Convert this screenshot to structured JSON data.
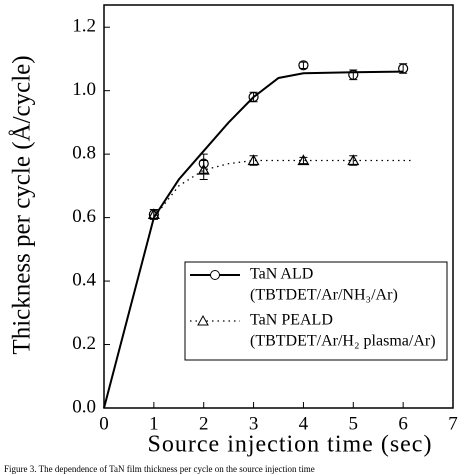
{
  "chart_data": {
    "type": "scatter",
    "xlabel": "Source injection time (sec)",
    "ylabel": "Thickness per cycle (Å/cycle)",
    "xlim": [
      0,
      7
    ],
    "xticks": [
      0,
      1,
      2,
      3,
      4,
      5,
      6,
      7
    ],
    "ylim": [
      0,
      1.27
    ],
    "yticks": [
      {
        "value": 0,
        "label": "0.0"
      },
      0.2,
      0.4,
      0.6,
      0.8,
      {
        "value": 1,
        "label": "1.0"
      },
      1.2
    ],
    "series": [
      {
        "name": "TaN ALD",
        "detail": "(TBTDET/Ar/NH₃/Ar)",
        "marker": "circle",
        "line": "solid",
        "color": "#000000",
        "x": [
          1,
          2,
          3,
          4,
          5,
          6
        ],
        "values": [
          0.61,
          0.77,
          0.98,
          1.08,
          1.05,
          1.07
        ],
        "errors": [
          0.015,
          0.03,
          0.015,
          0.01,
          0.015,
          0.015
        ],
        "fit": {
          "x": [
            0,
            0.5,
            1,
            1.5,
            2,
            2.5,
            3,
            3.5,
            4,
            5,
            6
          ],
          "values": [
            0,
            0.3,
            0.6,
            0.72,
            0.81,
            0.9,
            0.98,
            1.04,
            1.055,
            1.058,
            1.06
          ]
        }
      },
      {
        "name": "TaN PEALD",
        "detail": "(TBTDET/Ar/H₂ plasma/Ar)",
        "marker": "triangle",
        "line": "dotted",
        "color": "#000000",
        "x": [
          1,
          2,
          3,
          4,
          5
        ],
        "values": [
          0.61,
          0.75,
          0.78,
          0.78,
          0.78
        ],
        "errors": [
          0.015,
          0.03,
          0.015,
          0.01,
          0.015
        ],
        "fit": {
          "x": [
            0,
            0.5,
            1,
            1.5,
            2,
            2.5,
            3,
            4,
            6.2
          ],
          "values": [
            0,
            0.3,
            0.6,
            0.7,
            0.75,
            0.77,
            0.78,
            0.78,
            0.78
          ]
        }
      }
    ],
    "caption": "Figure 3. The dependence of TaN film thickness per cycle on the source injection time"
  }
}
